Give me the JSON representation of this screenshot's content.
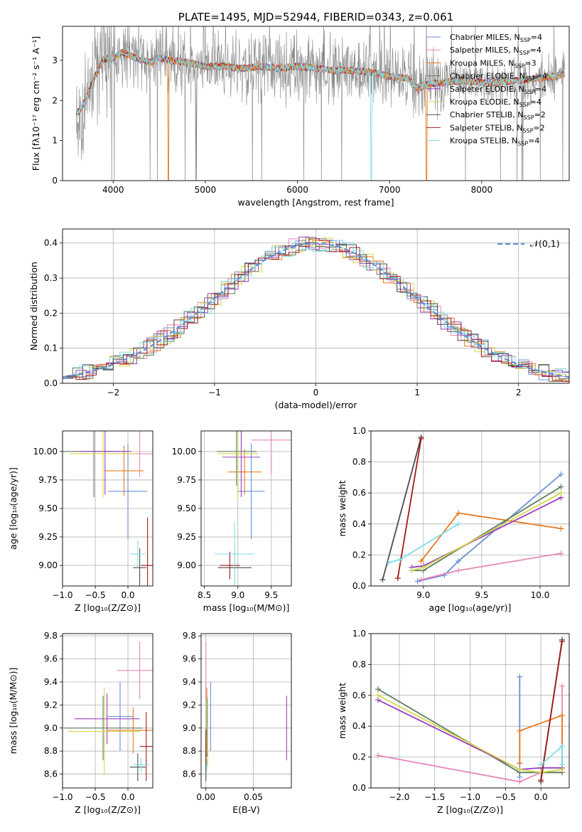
{
  "colors": [
    "#6b8fd6",
    "#e887b8",
    "#e87a1e",
    "#5c7f5c",
    "#9b3fbf",
    "#d6d64a",
    "#4d4d4d",
    "#a11a1a",
    "#7fdce6"
  ],
  "legend_labels": [
    "Chabrier MILES, N",
    "Salpeter MILES, N",
    "Kroupa MILES, N",
    "Chabrier ELODIE, N",
    "Salpeter ELODIE, N",
    "Kroupa ELODIE, N",
    "Chabrier STELIB, N",
    "Salpeter STELIB, N",
    "Kroupa STELIB, N"
  ],
  "legend_sub": "SSP",
  "legend_nssp": [
    "=4",
    "=4",
    "=3",
    "=4",
    "=4",
    "=4",
    "=2",
    "=2",
    "=4"
  ],
  "chart_data": [
    {
      "type": "line",
      "title": "PLATE=1495, MJD=52944, FIBERID=0343, z=0.061",
      "xlabel": "wavelength [Angstrom, rest frame]",
      "ylabel": "Flux [fλ10⁻¹⁷ erg cm⁻² s⁻¹ A⁻¹]",
      "xlim": [
        3450,
        8950
      ],
      "ylim": [
        0,
        3.85
      ],
      "xticks": [
        "4000",
        "5000",
        "6000",
        "7000",
        "8000"
      ],
      "yticks": [
        "0",
        "1",
        "2",
        "3"
      ],
      "xtick_values": [
        4000,
        5000,
        6000,
        7000,
        8000
      ],
      "ytick_values": [
        0,
        1,
        2,
        3
      ],
      "data_x_range": [
        3600,
        8900
      ],
      "model_profile": {
        "x": [
          3600,
          3650,
          3700,
          3800,
          3900,
          4000,
          4100,
          4200,
          4300,
          4400,
          4500,
          4600,
          4800,
          5000,
          5200,
          5400,
          5600,
          5800,
          6000,
          6200,
          6400,
          6600,
          6800,
          7000,
          7200,
          7300,
          7400,
          7600,
          7800,
          8000,
          8200,
          8400,
          8600,
          8800,
          8900
        ],
        "y": [
          1.65,
          1.8,
          2.0,
          2.6,
          3.05,
          3.05,
          3.2,
          3.1,
          3.0,
          2.95,
          3.05,
          3.0,
          2.95,
          2.85,
          2.85,
          2.8,
          2.85,
          2.8,
          2.85,
          2.8,
          2.75,
          2.75,
          2.7,
          2.6,
          2.55,
          2.3,
          2.4,
          2.45,
          2.5,
          2.45,
          2.45,
          2.5,
          2.55,
          2.6,
          2.65
        ]
      }
    },
    {
      "type": "bar",
      "xlabel": "(data-model)/error",
      "ylabel": "Normed distribution",
      "xlim": [
        -2.5,
        2.5
      ],
      "ylim": [
        0,
        0.44
      ],
      "xticks": [
        "−2",
        "−1",
        "0",
        "1",
        "2"
      ],
      "yticks": [
        "0.0",
        "0.1",
        "0.2",
        "0.3",
        "0.4"
      ],
      "xtick_values": [
        -2,
        -1,
        0,
        1,
        2
      ],
      "ytick_values": [
        0,
        0.1,
        0.2,
        0.3,
        0.4
      ],
      "bin_width": 0.1,
      "reference_label": "𝒩(0,1)"
    },
    {
      "type": "scatter",
      "xlabel": "Z [log₁₀(Z/Z⊙)]",
      "ylabel": "age  [log₁₀(age/yr)]",
      "xlim": [
        -1.0,
        0.38
      ],
      "ylim": [
        8.82,
        10.18
      ],
      "xticks": [
        "−1.0",
        "−0.5",
        "0.0"
      ],
      "yticks": [
        "9.00",
        "9.25",
        "9.50",
        "9.75",
        "10.00"
      ],
      "xtick_values": [
        -1.0,
        -0.5,
        0.0
      ],
      "ytick_values": [
        9.0,
        9.25,
        9.5,
        9.75,
        10.0
      ],
      "errorbars": [
        {
          "c": 0,
          "x": 0.0,
          "y": 9.65,
          "xe": 0.3,
          "ye": 0.42
        },
        {
          "c": 1,
          "x": 0.18,
          "y": 9.98,
          "xe": 0.25,
          "ye": 0.2
        },
        {
          "c": 2,
          "x": -0.06,
          "y": 9.83,
          "xe": 0.3,
          "ye": 0.22
        },
        {
          "c": 3,
          "x": -0.52,
          "y": 10.0,
          "xe": 0.48,
          "ye": 0.4
        },
        {
          "c": 4,
          "x": -0.35,
          "y": 10.0,
          "xe": 0.4,
          "ye": 0.38
        },
        {
          "c": 5,
          "x": -0.38,
          "y": 9.98,
          "xe": 0.5,
          "ye": 0.38
        },
        {
          "c": 6,
          "x": 0.18,
          "y": 8.98,
          "xe": 0.1,
          "ye": 0.17
        },
        {
          "c": 7,
          "x": 0.3,
          "y": 9.0,
          "xe": 0.1,
          "ye": 0.42
        },
        {
          "c": 8,
          "x": 0.15,
          "y": 9.1,
          "xe": 0.12,
          "ye": 0.12
        }
      ]
    },
    {
      "type": "scatter",
      "xlabel": "mass [log₁₀(M/M⊙)]",
      "ylabel": "",
      "xlim": [
        8.45,
        9.8
      ],
      "ylim": [
        8.82,
        10.18
      ],
      "xticks": [
        "8.5",
        "9.0",
        "9.5"
      ],
      "yticks": [
        "9.00",
        "9.25",
        "9.50",
        "9.75",
        "10.00"
      ],
      "xtick_values": [
        8.5,
        9.0,
        9.5
      ],
      "ytick_values": [
        9.0,
        9.25,
        9.5,
        9.75,
        10.0
      ],
      "errorbars": [
        {
          "c": 0,
          "x": 9.2,
          "y": 9.65,
          "xe": 0.2,
          "ye": 0.42
        },
        {
          "c": 1,
          "x": 9.5,
          "y": 10.1,
          "xe": 0.3,
          "ye": 0.3
        },
        {
          "c": 2,
          "x": 9.1,
          "y": 9.82,
          "xe": 0.25,
          "ye": 0.2
        },
        {
          "c": 3,
          "x": 8.98,
          "y": 10.0,
          "xe": 0.3,
          "ye": 0.3
        },
        {
          "c": 4,
          "x": 9.05,
          "y": 9.95,
          "xe": 0.28,
          "ye": 0.35
        },
        {
          "c": 5,
          "x": 9.0,
          "y": 9.98,
          "xe": 0.3,
          "ye": 0.4
        },
        {
          "c": 6,
          "x": 8.95,
          "y": 8.98,
          "xe": 0.25,
          "ye": 0.15
        },
        {
          "c": 7,
          "x": 8.88,
          "y": 9.0,
          "xe": 0.15,
          "ye": 0.12
        },
        {
          "c": 8,
          "x": 8.95,
          "y": 9.1,
          "xe": 0.3,
          "ye": 0.28
        }
      ]
    },
    {
      "type": "line",
      "xlabel": "age  [log₁₀(age/yr)]",
      "ylabel": "mass weight",
      "xlim": [
        8.55,
        10.25
      ],
      "ylim": [
        0,
        1.0
      ],
      "xticks": [
        "9.0",
        "9.5",
        "10.0"
      ],
      "yticks": [
        "0.0",
        "0.2",
        "0.4",
        "0.6",
        "0.8",
        "1.0"
      ],
      "xtick_values": [
        9.0,
        9.5,
        10.0
      ],
      "ytick_values": [
        0,
        0.2,
        0.4,
        0.6,
        0.8,
        1.0
      ],
      "series": [
        {
          "c": 0,
          "x": [
            8.95,
            9.18,
            9.3,
            10.18
          ],
          "y": [
            0.03,
            0.07,
            0.16,
            0.72
          ]
        },
        {
          "c": 1,
          "x": [
            8.98,
            9.3,
            10.18
          ],
          "y": [
            0.04,
            0.1,
            0.21
          ]
        },
        {
          "c": 2,
          "x": [
            8.98,
            9.3,
            10.18
          ],
          "y": [
            0.16,
            0.47,
            0.37
          ]
        },
        {
          "c": 3,
          "x": [
            8.9,
            9.0,
            10.18
          ],
          "y": [
            0.1,
            0.1,
            0.64
          ]
        },
        {
          "c": 4,
          "x": [
            8.9,
            9.0,
            10.18
          ],
          "y": [
            0.12,
            0.13,
            0.57
          ]
        },
        {
          "c": 5,
          "x": [
            8.9,
            9.0,
            10.18
          ],
          "y": [
            0.1,
            0.12,
            0.6
          ]
        },
        {
          "c": 6,
          "x": [
            8.65,
            8.98
          ],
          "y": [
            0.04,
            0.96
          ]
        },
        {
          "c": 7,
          "x": [
            8.78,
            8.98
          ],
          "y": [
            0.05,
            0.95
          ]
        },
        {
          "c": 8,
          "x": [
            8.7,
            8.8,
            9.3
          ],
          "y": [
            0.15,
            0.17,
            0.4
          ]
        }
      ]
    },
    {
      "type": "scatter",
      "xlabel": "Z [log₁₀(Z/Z⊙)]",
      "ylabel": "mass [log₁₀(M/M⊙)]",
      "xlim": [
        -1.0,
        0.38
      ],
      "ylim": [
        8.48,
        9.82
      ],
      "xticks": [
        "−1.0",
        "−0.5",
        "0.0"
      ],
      "yticks": [
        "8.6",
        "8.8",
        "9.0",
        "9.2",
        "9.4",
        "9.6",
        "9.8"
      ],
      "xtick_values": [
        -1.0,
        -0.5,
        0.0
      ],
      "ytick_values": [
        8.6,
        8.8,
        9.0,
        9.2,
        9.4,
        9.6,
        9.8
      ],
      "errorbars": [
        {
          "c": 0,
          "x": -0.12,
          "y": 9.1,
          "xe": 0.2,
          "ye": 0.3
        },
        {
          "c": 1,
          "x": 0.18,
          "y": 9.5,
          "xe": 0.35,
          "ye": 0.25
        },
        {
          "c": 2,
          "x": 0.08,
          "y": 8.98,
          "xe": 0.4,
          "ye": 0.2
        },
        {
          "c": 3,
          "x": -0.38,
          "y": 9.0,
          "xe": 0.6,
          "ye": 0.28
        },
        {
          "c": 4,
          "x": -0.32,
          "y": 9.08,
          "xe": 0.5,
          "ye": 0.22
        },
        {
          "c": 5,
          "x": -0.36,
          "y": 8.97,
          "xe": 0.55,
          "ye": 0.38
        },
        {
          "c": 6,
          "x": 0.15,
          "y": 8.66,
          "xe": 0.12,
          "ye": 0.12
        },
        {
          "c": 7,
          "x": 0.28,
          "y": 8.84,
          "xe": 0.1,
          "ye": 0.3
        },
        {
          "c": 8,
          "x": 0.2,
          "y": 8.68,
          "xe": 0.12,
          "ye": 0.06
        }
      ]
    },
    {
      "type": "scatter",
      "xlabel": "E(B-V)",
      "ylabel": "",
      "xlim": [
        -0.005,
        0.09
      ],
      "ylim": [
        8.48,
        9.82
      ],
      "xticks": [
        "0.00",
        "0.05"
      ],
      "yticks": [
        "8.6",
        "8.8",
        "9.0",
        "9.2",
        "9.4",
        "9.6",
        "9.8"
      ],
      "xtick_values": [
        0.0,
        0.05
      ],
      "ytick_values": [
        8.6,
        8.8,
        9.0,
        9.2,
        9.4,
        9.6,
        9.8
      ],
      "errorbars": [
        {
          "c": 0,
          "x": 0.005,
          "y": 9.1,
          "xe": 0,
          "ye": 0.3
        },
        {
          "c": 1,
          "x": 0.0,
          "y": 9.5,
          "xe": 0,
          "ye": 0.25
        },
        {
          "c": 2,
          "x": 0.001,
          "y": 9.2,
          "xe": 0,
          "ye": 0.15
        },
        {
          "c": 3,
          "x": 0.001,
          "y": 9.0,
          "xe": 0,
          "ye": 0.25
        },
        {
          "c": 4,
          "x": 0.085,
          "y": 9.0,
          "xe": 0,
          "ye": 0.28
        },
        {
          "c": 5,
          "x": 0.002,
          "y": 8.97,
          "xe": 0,
          "ye": 0.3
        },
        {
          "c": 6,
          "x": 0.0,
          "y": 8.66,
          "xe": 0,
          "ye": 0.12
        },
        {
          "c": 7,
          "x": 0.0,
          "y": 8.84,
          "xe": 0,
          "ye": 0.15
        },
        {
          "c": 8,
          "x": 0.001,
          "y": 8.68,
          "xe": 0,
          "ye": 0.05
        }
      ]
    },
    {
      "type": "line",
      "xlabel": "Z [log₁₀(Z/Z⊙)]",
      "ylabel": "mass weight",
      "xlim": [
        -2.4,
        0.4
      ],
      "ylim": [
        0,
        1.0
      ],
      "xticks": [
        "−2.0",
        "−1.5",
        "−1.0",
        "−0.5",
        "0.0"
      ],
      "yticks": [
        "0.0",
        "0.2",
        "0.4",
        "0.6",
        "0.8",
        "1.0"
      ],
      "xtick_values": [
        -2.0,
        -1.5,
        -1.0,
        -0.5,
        0.0
      ],
      "ytick_values": [
        0,
        0.2,
        0.4,
        0.6,
        0.8,
        1.0
      ],
      "series": [
        {
          "c": 0,
          "x": [
            -0.3,
            -0.3,
            -0.3
          ],
          "y": [
            0.07,
            0.72,
            0.16
          ]
        },
        {
          "c": 1,
          "x": [
            -2.3,
            -0.3,
            0.0,
            0.3,
            0.3
          ],
          "y": [
            0.21,
            0.04,
            0.1,
            0.1,
            0.66
          ]
        },
        {
          "c": 2,
          "x": [
            -0.3,
            -0.3,
            0.3,
            0.3
          ],
          "y": [
            0.16,
            0.37,
            0.47,
            0.12
          ]
        },
        {
          "c": 3,
          "x": [
            -2.3,
            -0.3,
            0.0,
            0.3
          ],
          "y": [
            0.64,
            0.1,
            0.1,
            0.1
          ]
        },
        {
          "c": 4,
          "x": [
            -2.3,
            -0.3,
            0.0,
            0.3
          ],
          "y": [
            0.57,
            0.12,
            0.13,
            0.13
          ]
        },
        {
          "c": 5,
          "x": [
            -2.3,
            -0.3,
            0.0,
            0.3
          ],
          "y": [
            0.6,
            0.12,
            0.1,
            0.12
          ]
        },
        {
          "c": 6,
          "x": [
            0.0,
            0.3
          ],
          "y": [
            0.04,
            0.96
          ]
        },
        {
          "c": 7,
          "x": [
            0.0,
            0.3
          ],
          "y": [
            0.05,
            0.95
          ]
        },
        {
          "c": 8,
          "x": [
            0.0,
            0.3,
            0.3
          ],
          "y": [
            0.15,
            0.27,
            0.15
          ]
        }
      ]
    }
  ]
}
